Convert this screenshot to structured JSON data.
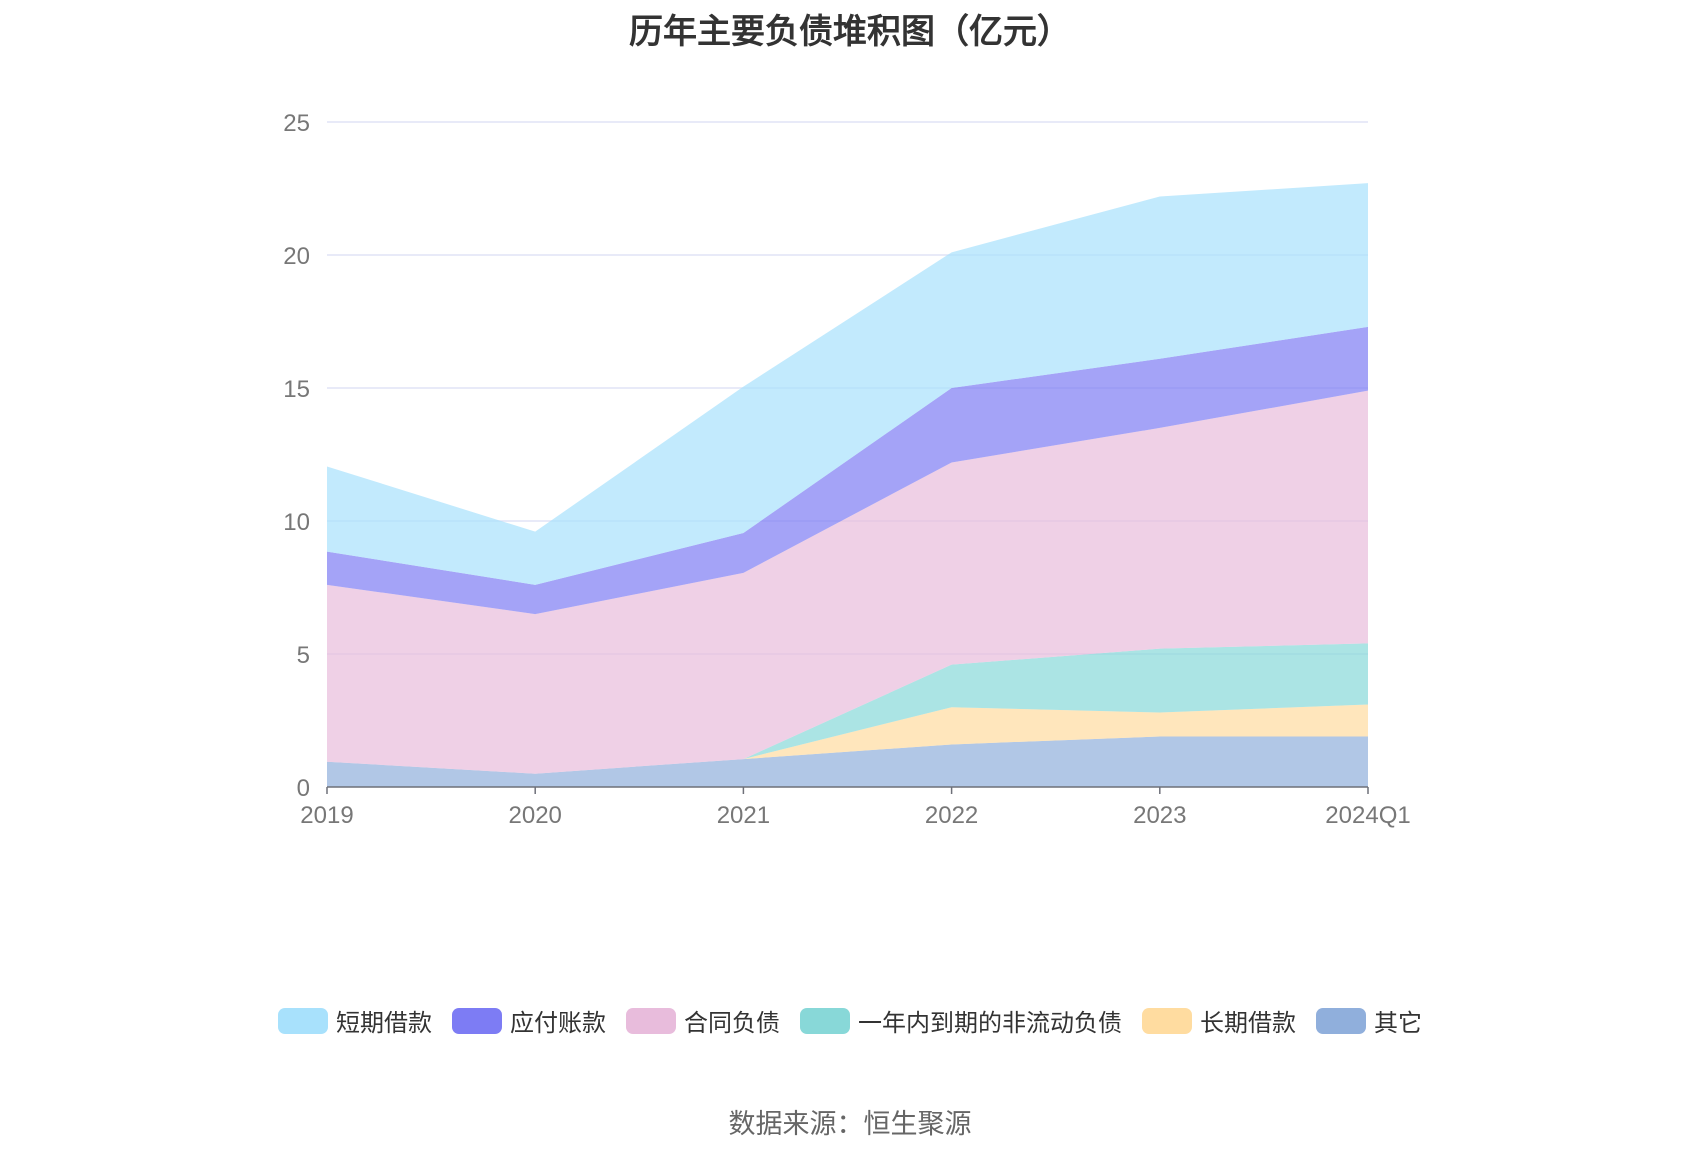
{
  "chart_data": {
    "type": "area",
    "stacked": true,
    "title": "历年主要负债堆积图（亿元）",
    "categories": [
      "2019",
      "2020",
      "2021",
      "2022",
      "2023",
      "2024Q1"
    ],
    "ylim": [
      0,
      25
    ],
    "yticks": [
      0,
      5,
      10,
      15,
      20,
      25
    ],
    "grid": true,
    "legend_position": "bottom",
    "series": [
      {
        "name": "其它",
        "color": "#90afdc",
        "values": [
          0.95,
          0.5,
          1.05,
          1.6,
          1.9,
          1.9
        ]
      },
      {
        "name": "长期借款",
        "color": "#ffdca0",
        "values": [
          0,
          0,
          0,
          1.4,
          0.9,
          1.2
        ]
      },
      {
        "name": "一年内到期的非流动负债",
        "color": "#88d8d8",
        "values": [
          0,
          0,
          0,
          1.6,
          2.4,
          2.3
        ]
      },
      {
        "name": "合同负债",
        "color": "#e8bcdc",
        "values": [
          6.65,
          6.0,
          7.0,
          7.6,
          8.3,
          9.5
        ]
      },
      {
        "name": "应付账款",
        "color": "#7d7cf4",
        "values": [
          1.25,
          1.1,
          1.5,
          2.8,
          2.6,
          2.4
        ]
      },
      {
        "name": "短期借款",
        "color": "#a8e1fc",
        "values": [
          3.2,
          2.0,
          5.5,
          5.1,
          6.1,
          5.4
        ]
      }
    ]
  },
  "legend_order": [
    "短期借款",
    "应付账款",
    "合同负债",
    "一年内到期的非流动负债",
    "长期借款",
    "其它"
  ],
  "source": "数据来源：恒生聚源"
}
